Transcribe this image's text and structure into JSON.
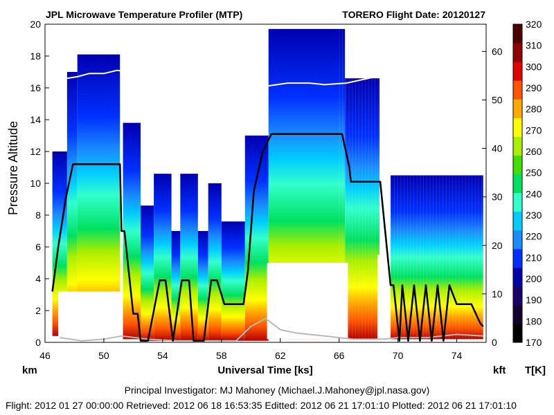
{
  "chart_data": {
    "type": "heatmap",
    "title": "JPL Microwave Temperature Profiler (MTP)",
    "subtitle": "TORERO  Flight Date: 20120127",
    "xlabel": "Universal Time [ks]",
    "ylabel": "Pressure Altitude",
    "xlim": [
      46,
      76
    ],
    "ylim": [
      0,
      20
    ],
    "xticks": [
      46,
      50,
      54,
      58,
      62,
      66,
      70,
      74
    ],
    "yticks": [
      0,
      2,
      4,
      6,
      8,
      10,
      12,
      14,
      16,
      18,
      20
    ],
    "y_unit_left": "km",
    "y_unit_right": "kft",
    "right_axis_ticks_kft": [
      0,
      10,
      20,
      30,
      40,
      50,
      60
    ],
    "colorbar": {
      "label": "T[K]",
      "ticks": [
        170,
        180,
        190,
        200,
        210,
        220,
        230,
        240,
        250,
        260,
        270,
        280,
        290,
        300,
        310,
        320
      ],
      "colors": [
        "#000000",
        "#140030",
        "#1a0066",
        "#0000a8",
        "#0030ff",
        "#1a8cff",
        "#00ccff",
        "#33ffcc",
        "#00e060",
        "#44dd00",
        "#aaee00",
        "#ffff00",
        "#ffaa00",
        "#ff5500",
        "#e00000",
        "#900000",
        "#4a0000"
      ]
    },
    "flight_altitude_km": {
      "x": [
        46.5,
        46.9,
        47.4,
        47.9,
        48.2,
        51.1,
        51.2,
        51.4,
        52.0,
        52.3,
        52.5,
        53.0,
        53.8,
        54.2,
        54.7,
        55.3,
        55.8,
        56.1,
        56.8,
        57.3,
        57.7,
        58.2,
        59.5,
        59.8,
        60.2,
        60.8,
        61.4,
        66.2,
        66.7,
        66.8,
        68.8,
        69.5,
        69.7,
        70.1,
        70.3,
        70.7,
        71.1,
        71.5,
        71.9,
        72.3,
        72.7,
        73.1,
        73.5,
        74.0,
        75.0,
        75.6,
        75.8
      ],
      "y": [
        3.2,
        6.0,
        9.0,
        11.2,
        11.2,
        11.2,
        7.0,
        7.0,
        1.8,
        1.8,
        0.1,
        0.1,
        3.9,
        3.9,
        0.1,
        3.9,
        3.9,
        0.1,
        0.1,
        3.9,
        3.9,
        2.4,
        2.4,
        4.5,
        9.5,
        12.0,
        13.1,
        13.1,
        11.0,
        10.1,
        10.1,
        3.6,
        3.6,
        0.1,
        3.6,
        0.1,
        3.6,
        0.1,
        3.6,
        0.1,
        3.6,
        0.1,
        3.6,
        2.4,
        2.4,
        1.2,
        1.0
      ]
    },
    "tropopause_km": {
      "x": [
        47.5,
        48.2,
        49.0,
        50.0,
        50.9,
        61.0,
        62.5,
        64.0,
        65.0,
        66.5,
        67.5,
        68.5
      ],
      "y": [
        16.6,
        16.7,
        16.9,
        16.9,
        17.1,
        16.1,
        16.3,
        16.3,
        16.2,
        16.3,
        16.5,
        16.7
      ]
    },
    "surface_km": {
      "x": [
        47.0,
        48.5,
        50.0,
        51.2,
        53.0,
        55.0,
        57.0,
        59.0,
        60.0,
        61.0,
        62.0,
        63.0,
        64.0,
        65.0,
        66.0,
        67.0,
        68.0,
        69.0,
        70.0,
        72.0,
        74.0,
        75.8
      ],
      "y": [
        0.3,
        0.1,
        0.2,
        0.4,
        0.2,
        0.1,
        0.1,
        0.1,
        1.0,
        1.5,
        0.8,
        0.6,
        0.5,
        0.4,
        0.3,
        0.2,
        0.2,
        0.2,
        0.3,
        0.3,
        0.5,
        0.4
      ]
    }
  },
  "footer": {
    "principal_investigator": "Principal Investigator: MJ Mahoney (Michael.J.Mahoney@jpl.nasa.gov)",
    "meta": "Flight: 2012 01 27 00:00:00   Retrieved: 2012 06 18 16:53:35   Editted: 2012 06 21 17:01:10   Plotted: 2012 06 21 17:01:10"
  }
}
